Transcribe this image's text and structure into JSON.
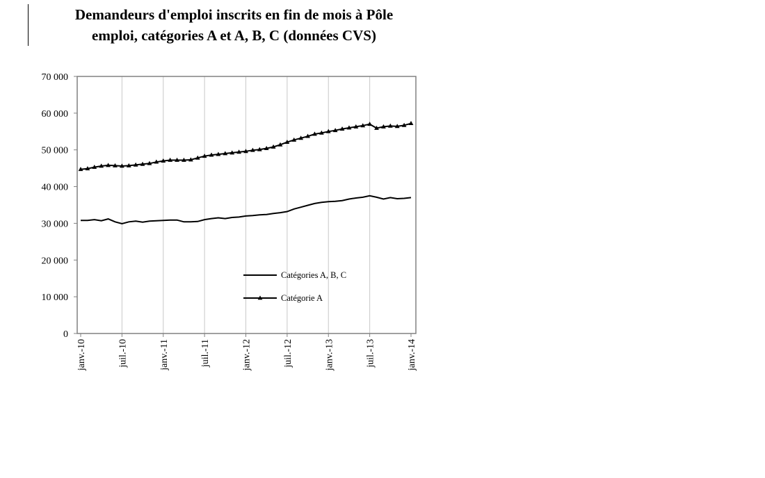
{
  "chart_data": {
    "type": "line",
    "title_line1": "Demandeurs d'emploi inscrits en fin de mois à Pôle",
    "title_line2": "emploi, catégories A et A, B, C (données CVS)",
    "ylim": [
      0,
      70000
    ],
    "y_ticks": [
      0,
      10000,
      20000,
      30000,
      40000,
      50000,
      60000,
      70000
    ],
    "y_tick_labels": [
      "0",
      "10 000",
      "20 000",
      "30 000",
      "40 000",
      "50 000",
      "60 000",
      "70 000"
    ],
    "x_tick_labels": [
      "janv.-10",
      "juil.-10",
      "janv.-11",
      "juil.-11",
      "janv.-12",
      "juil.-12",
      "janv.-13",
      "juil.-13",
      "janv.-14"
    ],
    "x_tick_index": [
      0,
      6,
      12,
      18,
      24,
      30,
      36,
      42,
      48
    ],
    "grid": "vertical",
    "legend_position": "bottom-right",
    "x": [
      "janv.-10",
      "févr.-10",
      "mars-10",
      "avr.-10",
      "mai-10",
      "juin-10",
      "juil.-10",
      "août-10",
      "sept.-10",
      "oct.-10",
      "nov.-10",
      "déc.-10",
      "janv.-11",
      "févr.-11",
      "mars-11",
      "avr.-11",
      "mai-11",
      "juin-11",
      "juil.-11",
      "août-11",
      "sept.-11",
      "oct.-11",
      "nov.-11",
      "déc.-11",
      "janv.-12",
      "févr.-12",
      "mars-12",
      "avr.-12",
      "mai-12",
      "juin-12",
      "juil.-12",
      "août-12",
      "sept.-12",
      "oct.-12",
      "nov.-12",
      "déc.-12",
      "janv.-13",
      "févr.-13",
      "mars-13",
      "avr.-13",
      "mai-13",
      "juin-13",
      "juil.-13",
      "août-13",
      "sept.-13",
      "oct.-13",
      "nov.-13",
      "déc.-13",
      "janv.-14"
    ],
    "series": [
      {
        "name": "Catégories A, B, C",
        "marker": "none",
        "values": [
          30800,
          30800,
          31000,
          30700,
          31200,
          30400,
          29900,
          30400,
          30600,
          30300,
          30600,
          30700,
          30800,
          30900,
          30900,
          30400,
          30400,
          30500,
          31000,
          31300,
          31500,
          31300,
          31600,
          31700,
          32000,
          32100,
          32300,
          32400,
          32700,
          32900,
          33200,
          33900,
          34400,
          34900,
          35400,
          35700,
          35900,
          36000,
          36200,
          36600,
          36900,
          37100,
          37500,
          37100,
          36600,
          37000,
          36700,
          36800,
          37000
        ]
      },
      {
        "name": "Catégorie A",
        "marker": "triangle",
        "values": [
          44700,
          44900,
          45300,
          45600,
          45800,
          45700,
          45600,
          45700,
          45900,
          46100,
          46300,
          46700,
          47000,
          47200,
          47200,
          47200,
          47300,
          47800,
          48300,
          48600,
          48800,
          49000,
          49200,
          49400,
          49600,
          49900,
          50100,
          50400,
          50800,
          51400,
          52100,
          52700,
          53200,
          53700,
          54300,
          54600,
          55000,
          55300,
          55700,
          56000,
          56300,
          56600,
          57000,
          55900,
          56300,
          56500,
          56400,
          56700,
          57200
        ]
      }
    ]
  }
}
